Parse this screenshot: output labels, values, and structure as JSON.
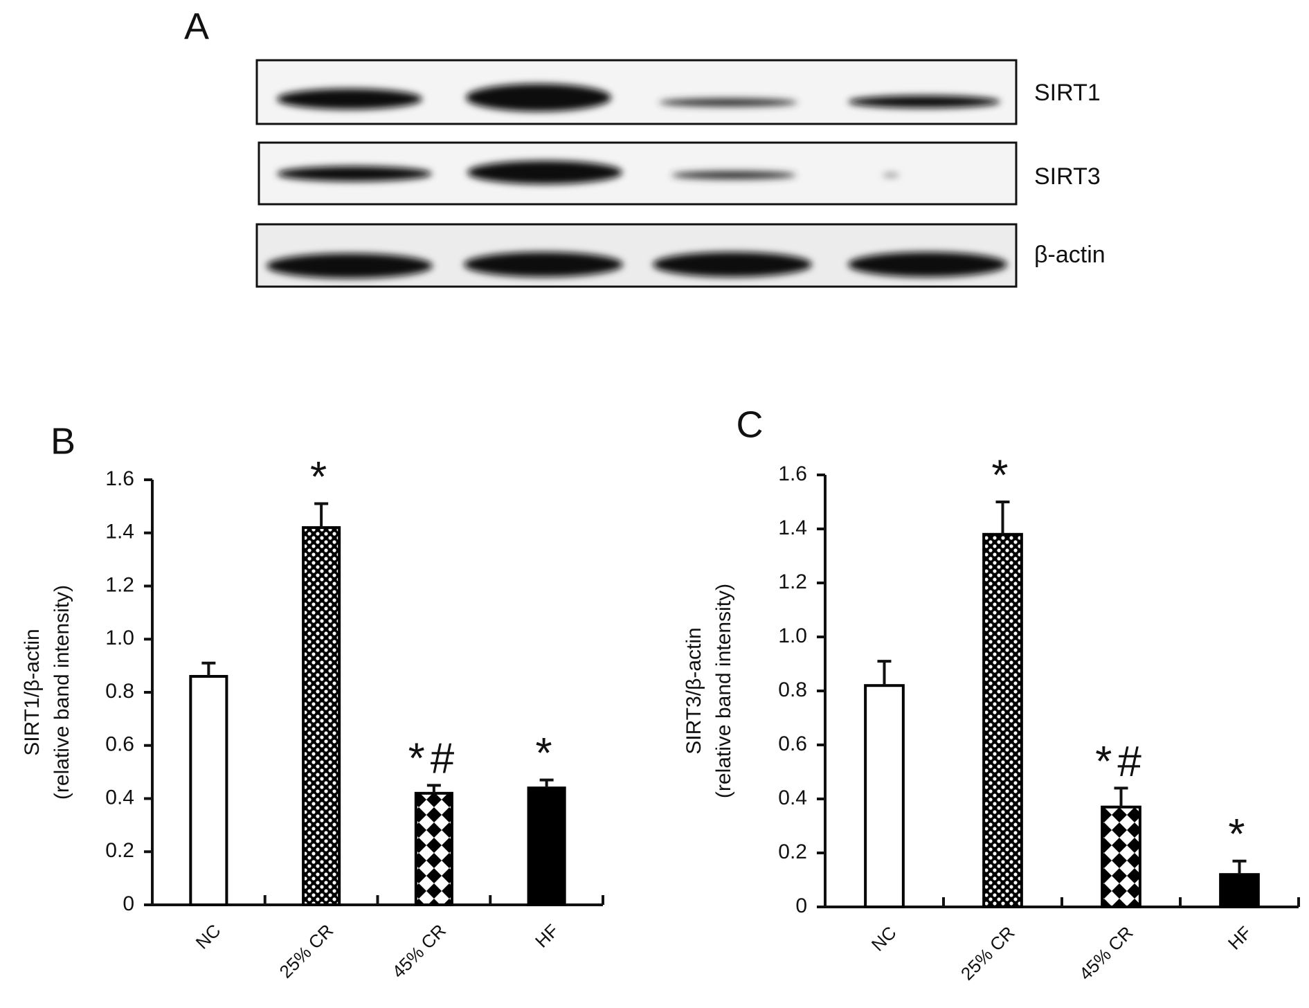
{
  "blot": {
    "panel": "A",
    "bands": [
      "SIRT1",
      "SIRT3",
      "β-actin"
    ]
  },
  "chart_data": [
    {
      "type": "bar",
      "panel": "B",
      "ylabel": [
        "SIRT1/β-actin",
        "(relative band intensity)"
      ],
      "categories": [
        "NC",
        "25% CR",
        "45% CR",
        "HF"
      ],
      "values": [
        0.86,
        1.42,
        0.42,
        0.44
      ],
      "errors": [
        0.05,
        0.09,
        0.03,
        0.03
      ],
      "annotations": [
        null,
        "*",
        "*#",
        "*"
      ],
      "patterns": [
        "none",
        "dots",
        "diamonds",
        "solid"
      ],
      "color": "#000000",
      "ylim": [
        0,
        1.6
      ],
      "yticks": [
        0,
        0.2,
        0.4,
        0.6,
        0.8,
        {
          "value": 1,
          "label": "1.0"
        },
        1.2,
        1.4,
        1.6
      ]
    },
    {
      "type": "bar",
      "panel": "C",
      "ylabel": [
        "SIRT3/β-actin",
        "(relative band intensity)"
      ],
      "categories": [
        "NC",
        "25% CR",
        "45% CR",
        "HF"
      ],
      "values": [
        0.82,
        1.38,
        0.37,
        0.12
      ],
      "errors": [
        0.09,
        0.12,
        0.07,
        0.05
      ],
      "annotations": [
        null,
        "*",
        "*#",
        "*"
      ],
      "patterns": [
        "none",
        "dots",
        "diamonds",
        "solid"
      ],
      "color": "#000000",
      "ylim": [
        0,
        1.6
      ],
      "yticks": [
        0,
        0.2,
        0.4,
        0.6,
        0.8,
        {
          "value": 1,
          "label": "1.0"
        },
        1.2,
        1.4,
        1.6
      ]
    }
  ]
}
